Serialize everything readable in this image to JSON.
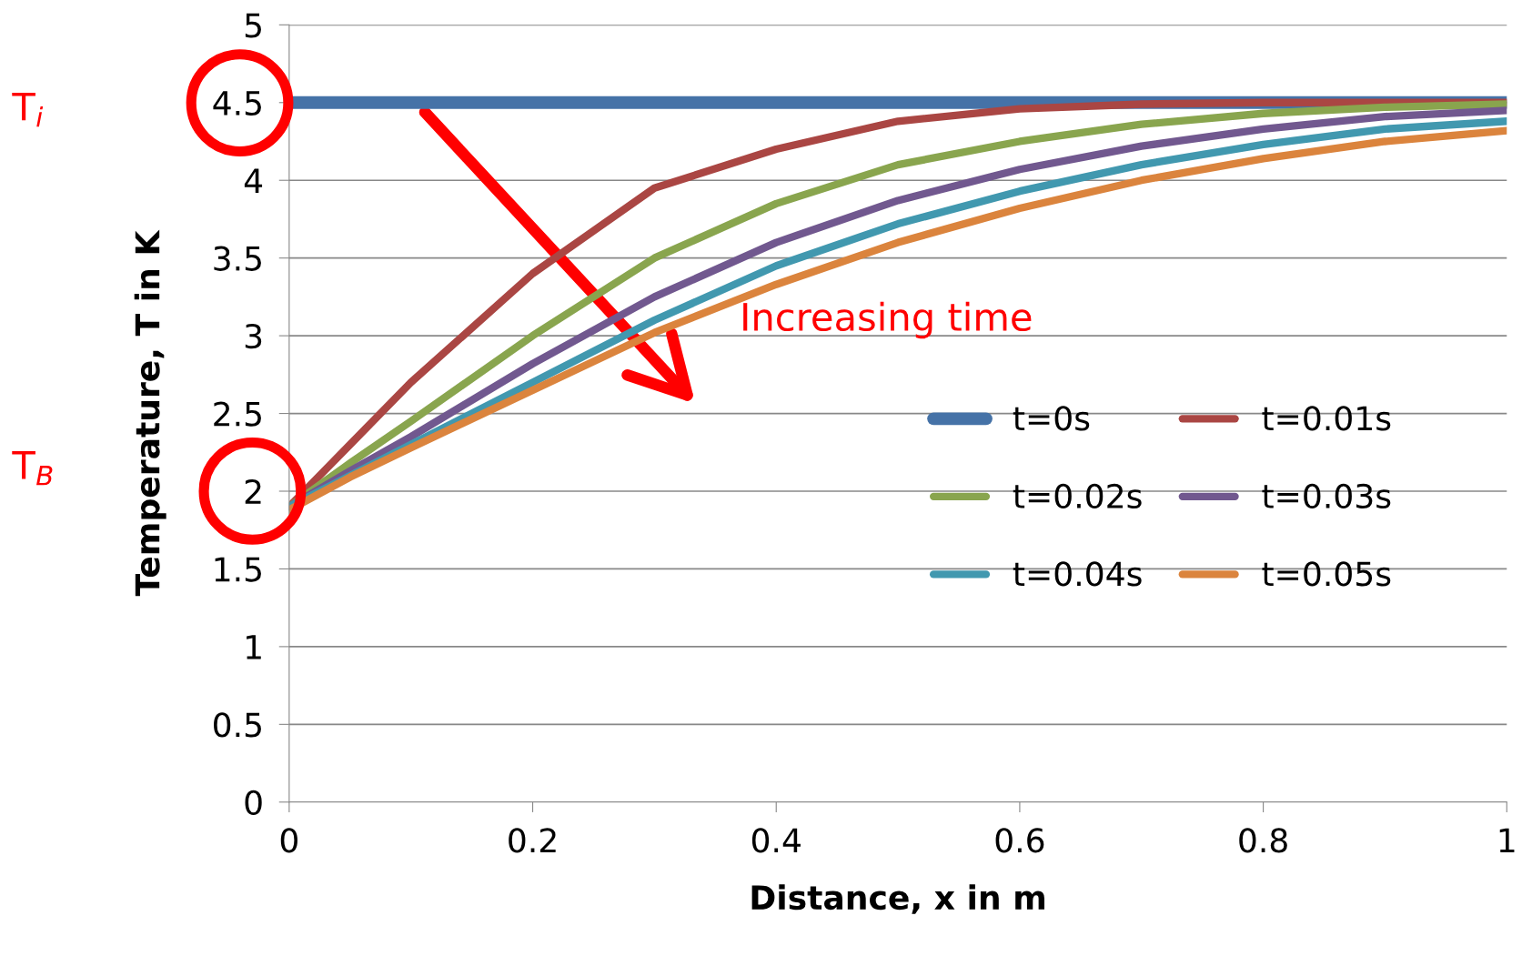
{
  "chart_data": {
    "type": "line",
    "xlabel": "Distance, x in m",
    "ylabel": "Temperature, T in K",
    "x": [
      0,
      0.05,
      0.1,
      0.2,
      0.3,
      0.4,
      0.5,
      0.6,
      0.7,
      0.8,
      0.9,
      1
    ],
    "series": [
      {
        "name": "t=0s",
        "color": "#4572a7",
        "values": [
          4.5,
          4.5,
          4.5,
          4.5,
          4.5,
          4.5,
          4.5,
          4.5,
          4.5,
          4.5,
          4.5,
          4.5
        ]
      },
      {
        "name": "t=0.01s",
        "color": "#aa4643",
        "values": [
          1.9,
          2.3,
          2.7,
          3.4,
          3.95,
          4.2,
          4.38,
          4.46,
          4.49,
          4.5,
          4.5,
          4.5
        ]
      },
      {
        "name": "t=0.02s",
        "color": "#89a54e",
        "values": [
          1.9,
          2.18,
          2.45,
          3.0,
          3.5,
          3.85,
          4.1,
          4.25,
          4.36,
          4.43,
          4.47,
          4.49
        ]
      },
      {
        "name": "t=0.03s",
        "color": "#71588f",
        "values": [
          1.9,
          2.13,
          2.35,
          2.82,
          3.25,
          3.6,
          3.87,
          4.07,
          4.22,
          4.33,
          4.41,
          4.45
        ]
      },
      {
        "name": "t=0.04s",
        "color": "#4198af",
        "values": [
          1.9,
          2.1,
          2.3,
          2.7,
          3.1,
          3.45,
          3.72,
          3.93,
          4.1,
          4.23,
          4.33,
          4.38
        ]
      },
      {
        "name": "t=0.05s",
        "color": "#db843d",
        "values": [
          1.88,
          2.09,
          2.28,
          2.65,
          3.02,
          3.33,
          3.6,
          3.82,
          4.0,
          4.14,
          4.25,
          4.32
        ]
      }
    ],
    "xlim": [
      0,
      1
    ],
    "xticks": [
      0,
      0.2,
      0.4,
      0.6,
      0.8,
      1
    ],
    "ylim": [
      0,
      5
    ],
    "yticks": [
      0,
      0.5,
      1,
      1.5,
      2,
      2.5,
      3,
      3.5,
      4,
      4.5,
      5
    ],
    "grid": "y",
    "legend": "right",
    "marker": "none",
    "line_style": "solid",
    "annotations": [
      "Increasing time",
      "T$_{i}$",
      "T$_{B}$"
    ]
  }
}
